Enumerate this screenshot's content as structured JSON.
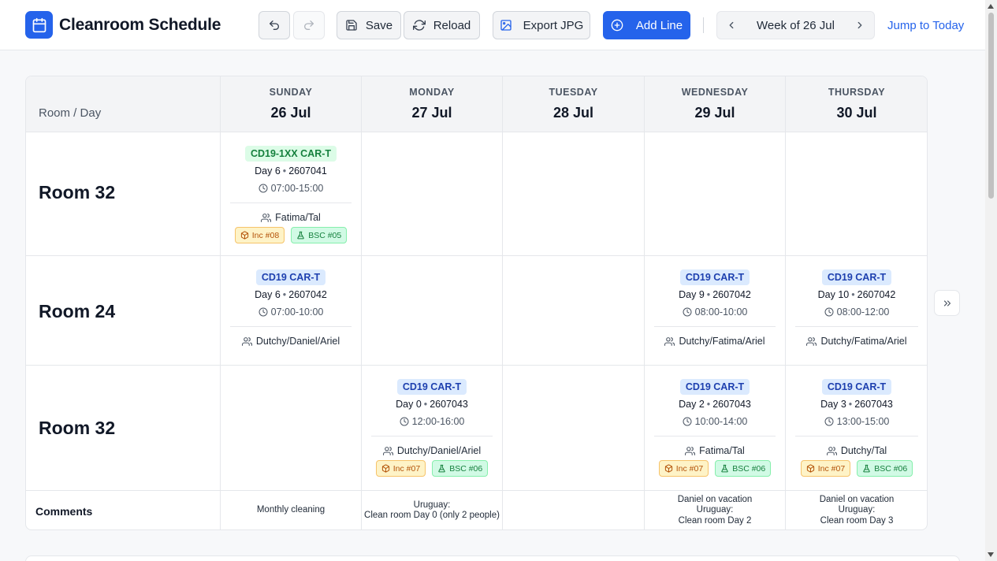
{
  "app": {
    "title": "Cleanroom Schedule",
    "icon": "calendar-icon",
    "accent": "#2563eb"
  },
  "toolbar": {
    "undo_icon": "undo-icon",
    "redo_icon": "redo-icon",
    "save_label": "Save",
    "reload_label": "Reload",
    "export_label": "Export JPG",
    "add_label": "Add Line",
    "week_label": "Week of 26 Jul",
    "jump_label": "Jump to Today"
  },
  "grid": {
    "corner_label": "Room / Day",
    "days": [
      {
        "name": "SUNDAY",
        "date": "26 Jul"
      },
      {
        "name": "MONDAY",
        "date": "27 Jul"
      },
      {
        "name": "TUESDAY",
        "date": "28 Jul"
      },
      {
        "name": "WEDNESDAY",
        "date": "29 Jul"
      },
      {
        "name": "THURSDAY",
        "date": "30 Jul"
      }
    ],
    "rows": [
      {
        "room": "Room 32",
        "cells": [
          {
            "badge": "CD19-1XX CAR-T",
            "badge_color": "green",
            "day": "Day 6",
            "lot": "2607041",
            "time": "07:00-15:00",
            "people": "Fatima/Tal",
            "inc": "Inc #08",
            "bsc": "BSC #05"
          },
          null,
          null,
          null,
          null
        ]
      },
      {
        "room": "Room 24",
        "cells": [
          {
            "badge": "CD19 CAR-T",
            "badge_color": "blue",
            "day": "Day 6",
            "lot": "2607042",
            "time": "07:00-10:00",
            "people": "Dutchy/Daniel/Ariel"
          },
          null,
          null,
          {
            "badge": "CD19 CAR-T",
            "badge_color": "blue",
            "day": "Day 9",
            "lot": "2607042",
            "time": "08:00-10:00",
            "people": "Dutchy/Fatima/Ariel"
          },
          {
            "badge": "CD19 CAR-T",
            "badge_color": "blue",
            "day": "Day 10",
            "lot": "2607042",
            "time": "08:00-12:00",
            "people": "Dutchy/Fatima/Ariel"
          }
        ]
      },
      {
        "room": "Room 32",
        "cells": [
          null,
          {
            "badge": "CD19 CAR-T",
            "badge_color": "blue",
            "day": "Day 0",
            "lot": "2607043",
            "time": "12:00-16:00",
            "people": "Dutchy/Daniel/Ariel",
            "inc": "Inc #07",
            "bsc": "BSC #06"
          },
          null,
          {
            "badge": "CD19 CAR-T",
            "badge_color": "blue",
            "day": "Day 2",
            "lot": "2607043",
            "time": "10:00-14:00",
            "people": "Fatima/Tal",
            "inc": "Inc #07",
            "bsc": "BSC #06"
          },
          {
            "badge": "CD19 CAR-T",
            "badge_color": "blue",
            "day": "Day 3",
            "lot": "2607043",
            "time": "13:00-15:00",
            "people": "Dutchy/Tal",
            "inc": "Inc #07",
            "bsc": "BSC #06"
          }
        ]
      }
    ],
    "comments_label": "Comments",
    "comments": [
      [
        "Monthly cleaning"
      ],
      [
        "Uruguay:",
        "Clean room Day 0 (only 2 people)"
      ],
      [],
      [
        "Daniel on vacation",
        "Uruguay:",
        "Clean room Day 2"
      ],
      [
        "Daniel on vacation",
        "Uruguay:",
        "Clean room Day 3"
      ]
    ]
  },
  "expand_icon": "chevrons-right-icon"
}
